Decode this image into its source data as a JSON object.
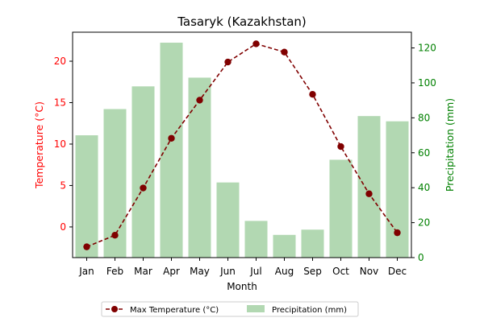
{
  "chart_data": {
    "type": "bar+line",
    "title": "Tasaryk (Kazakhstan)",
    "xlabel": "Month",
    "categories": [
      "Jan",
      "Feb",
      "Mar",
      "Apr",
      "May",
      "Jun",
      "Jul",
      "Aug",
      "Sep",
      "Oct",
      "Nov",
      "Dec"
    ],
    "left_axis": {
      "label": "Temperature (°C)",
      "color": "#ff0000",
      "ylim": [
        -3.7,
        23.5
      ],
      "ticks": [
        0,
        5,
        10,
        15,
        20
      ]
    },
    "right_axis": {
      "label": "Precipitation (mm)",
      "color": "#008000",
      "ylim": [
        0,
        129
      ],
      "ticks": [
        0,
        20,
        40,
        60,
        80,
        100,
        120
      ]
    },
    "series": [
      {
        "name": "Max Temperature (°C)",
        "kind": "line",
        "axis": "left",
        "color": "#800000",
        "style": "dashed",
        "marker": "circle",
        "values": [
          -2.4,
          -1.0,
          4.7,
          10.7,
          15.3,
          19.9,
          22.1,
          21.1,
          16.0,
          9.7,
          4.0,
          -0.7
        ]
      },
      {
        "name": "Precipitation (mm)",
        "kind": "bar",
        "axis": "right",
        "color": "#b2d8b2",
        "values": [
          70,
          85,
          98,
          123,
          103,
          43,
          21,
          13,
          16,
          56,
          81,
          78
        ]
      }
    ],
    "legend": {
      "placement": "bottom-center",
      "entries": [
        "Max Temperature (°C)",
        "Precipitation (mm)"
      ]
    },
    "grid": false
  }
}
